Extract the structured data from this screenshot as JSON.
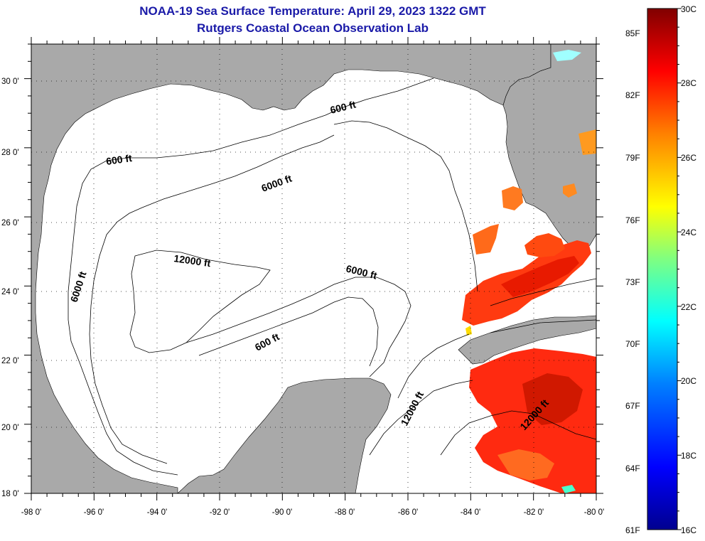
{
  "header": {
    "title": "NOAA-19 Sea Surface Temperature:  April 29, 2023 1322 GMT",
    "subtitle": "Rutgers Coastal Ocean Observation Lab"
  },
  "map": {
    "lon_range": [
      -98,
      -80
    ],
    "lat_range": [
      18,
      31
    ],
    "x_tick_labels": [
      "-98 0'",
      "-96 0'",
      "-94 0'",
      "-92 0'",
      "-90 0'",
      "-88 0'",
      "-86 0'",
      "-84 0'",
      "-82 0'",
      "-80 0'"
    ],
    "y_tick_labels": [
      "30 0'",
      "28 0'",
      "26 0'",
      "24 0'",
      "22 0'",
      "20 0'",
      "18 0'"
    ],
    "isobath_labels": [
      "600 ft",
      "600 ft",
      "6000 ft",
      "6000 ft",
      "12000 ft",
      "6000 ft",
      "600 ft",
      "12000 ft",
      "12000 ft"
    ],
    "colors": {
      "land": "#a9a9a9",
      "water": "#ffffff",
      "title": "#1a1aa8"
    }
  },
  "colorbar": {
    "fahrenheit_labels": [
      "85F",
      "82F",
      "79F",
      "76F",
      "73F",
      "70F",
      "67F",
      "64F",
      "61F"
    ],
    "celsius_labels": [
      "30C",
      "28C",
      "26C",
      "24C",
      "22C",
      "20C",
      "18C",
      "16C"
    ],
    "range_c": [
      16,
      30
    ]
  }
}
